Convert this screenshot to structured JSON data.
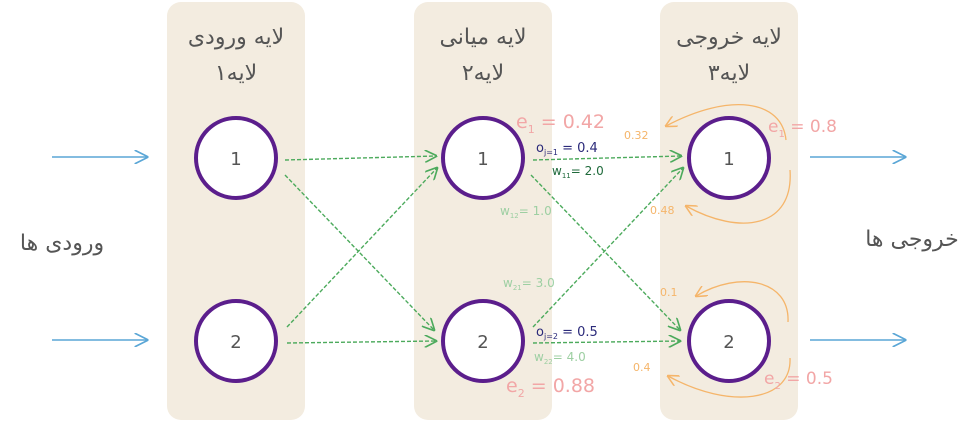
{
  "layers": [
    {
      "title": "لایه ورودی",
      "subtitle": "لایه۱",
      "nodes": [
        "1",
        "2"
      ]
    },
    {
      "title": "لایه میانی",
      "subtitle": "لایه۲",
      "nodes": [
        "1",
        "2"
      ]
    },
    {
      "title": "لایه خروجی",
      "subtitle": "لایه۳",
      "nodes": [
        "1",
        "2"
      ]
    }
  ],
  "side_labels": {
    "inputs": "ورودی ها",
    "outputs": "خروجی ها"
  },
  "hidden_annotations": {
    "e1": {
      "sym": "e",
      "sub": "1",
      "val": " = 0.42"
    },
    "e2": {
      "sym": "e",
      "sub": "2",
      "val": " = 0.88"
    },
    "o1": {
      "sym": "o",
      "sub": "j=1",
      "val": " = 0.4"
    },
    "o2": {
      "sym": "o",
      "sub": "j=2",
      "val": " = 0.5"
    },
    "w11": {
      "sym": "w",
      "sub": "11",
      "val": "= 2.0"
    },
    "w12": {
      "sym": "w",
      "sub": "12",
      "val": "= 1.0"
    },
    "w21": {
      "sym": "w",
      "sub": "21",
      "val": "= 3.0"
    },
    "w22": {
      "sym": "w",
      "sub": "22",
      "val": "= 4.0"
    }
  },
  "output_errors": {
    "e1": {
      "sym": "e",
      "sub": "1",
      "val": " = 0.8"
    },
    "e2": {
      "sym": "e",
      "sub": "2",
      "val": " = 0.5"
    }
  },
  "split_values": {
    "a": "0.32",
    "b": "0.48",
    "c": "0.1",
    "d": "0.4"
  },
  "colors": {
    "panel": "#f3ece0",
    "node": "#5b1e8c",
    "input_arrow": "#5aa6d6",
    "connection": "#4caa5c",
    "error": "#f2a6a6",
    "split": "#f5b56a",
    "weight_dark": "#1f6a3b",
    "weight_light": "#9dcfa2",
    "output_value": "#2b2a7a",
    "label": "#555555"
  }
}
